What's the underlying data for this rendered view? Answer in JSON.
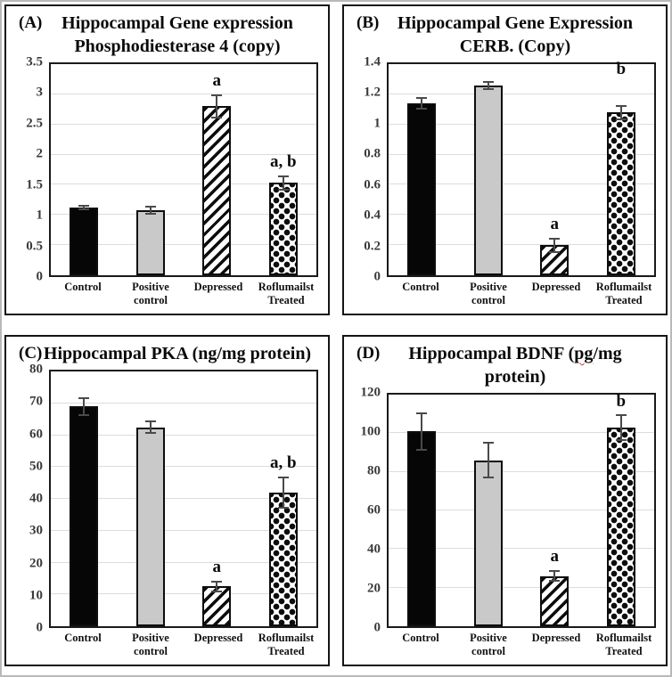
{
  "styles": {
    "bar_gray": "#c9c9c9",
    "grid_color": "#dcdcdc",
    "error_bar_color": "#4a4a4a",
    "misspell_underline_color": "#e03131",
    "bar_border_color": "#0d0d0d"
  },
  "chart_data": [
    {
      "panel_letter": "(A)",
      "title_lines": [
        "Hippocampal Gene expression",
        "Phosphodiesterase 4  (copy)"
      ],
      "type": "bar",
      "categories": [
        "Control",
        "Positive control",
        "Depressed",
        "Roflumailst Treated"
      ],
      "cat_lines": [
        [
          "Control"
        ],
        [
          "Positive",
          "control"
        ],
        [
          "Depressed"
        ],
        [
          "Roflumailst",
          "Treated"
        ]
      ],
      "values": [
        1.12,
        1.08,
        2.8,
        1.53
      ],
      "errors": [
        0.04,
        0.07,
        0.2,
        0.12
      ],
      "annotations": [
        "",
        "",
        "a",
        "a, b"
      ],
      "ann_y": [
        null,
        null,
        null,
        null
      ],
      "bar_styles": [
        "black",
        "gray",
        "hatch",
        "diamond"
      ],
      "ylim": [
        0,
        3.5
      ],
      "yticks": [
        "0",
        "0.5",
        "1",
        "1.5",
        "2",
        "2.5",
        "3",
        "3.5"
      ],
      "xlabel": "",
      "ylabel": "",
      "grid": true,
      "legend": null
    },
    {
      "panel_letter": "(B)",
      "title_lines": [
        "Hippocampal Gene Expression",
        "CERB. (Copy)"
      ],
      "type": "bar",
      "categories": [
        "Control",
        "Positive control",
        "Depressed",
        "Roflumailst Treated"
      ],
      "cat_lines": [
        [
          "Control"
        ],
        [
          "Positive",
          "control"
        ],
        [
          "Depressed"
        ],
        [
          "Roflumailst",
          "Treated"
        ]
      ],
      "values": [
        1.14,
        1.26,
        0.2,
        1.08
      ],
      "errors": [
        0.04,
        0.03,
        0.05,
        0.05
      ],
      "annotations": [
        "",
        "",
        "a",
        "b"
      ],
      "ann_y": [
        null,
        null,
        null,
        1.31
      ],
      "bar_styles": [
        "black",
        "gray",
        "hatch",
        "diamond"
      ],
      "ylim": [
        0,
        1.4
      ],
      "yticks": [
        "0",
        "0.2",
        "0.4",
        "0.6",
        "0.8",
        "1",
        "1.2",
        "1.4"
      ],
      "xlabel": "",
      "ylabel": "",
      "grid": true,
      "legend": null
    },
    {
      "panel_letter": "(C)",
      "title_lines": [
        "Hippocampal PKA (ng/mg protein)"
      ],
      "type": "bar",
      "categories": [
        "Control",
        "Positive control",
        "Depressed",
        "Roflumailst Treated"
      ],
      "cat_lines": [
        [
          "Control"
        ],
        [
          "Positive control"
        ],
        [
          "Depressed"
        ],
        [
          "Roflumailst",
          "Treated"
        ]
      ],
      "values": [
        69,
        62.5,
        12.5,
        42
      ],
      "errors": [
        3,
        2,
        1.8,
        5
      ],
      "annotations": [
        "",
        "",
        "a",
        "a, b"
      ],
      "ann_y": [
        null,
        null,
        null,
        null
      ],
      "bar_styles": [
        "black",
        "gray",
        "hatch",
        "diamond"
      ],
      "ylim": [
        0,
        80
      ],
      "yticks": [
        "0",
        "10",
        "20",
        "30",
        "40",
        "50",
        "60",
        "70",
        "80"
      ],
      "xlabel": "",
      "ylabel": "",
      "grid": true,
      "legend": null
    },
    {
      "panel_letter": "(D)",
      "title_lines": [
        "Hippocampal BDNF (pg/mg",
        "protein)"
      ],
      "misspelled": "pg",
      "type": "bar",
      "categories": [
        "Control",
        "Positive control",
        "Depressed",
        "Roflumailst Treated"
      ],
      "cat_lines": [
        [
          "Control"
        ],
        [
          "Positive control"
        ],
        [
          "Depressed"
        ],
        [
          "Roflumailst",
          "Treated"
        ]
      ],
      "values": [
        101,
        86,
        26,
        103
      ],
      "errors": [
        10,
        9.5,
        3,
        7
      ],
      "annotations": [
        "",
        "",
        "a",
        "b"
      ],
      "ann_y": [
        null,
        null,
        null,
        112
      ],
      "bar_styles": [
        "black",
        "gray",
        "hatch",
        "diamond"
      ],
      "ylim": [
        0,
        120
      ],
      "yticks": [
        "0",
        "20",
        "40",
        "60",
        "80",
        "100",
        "120"
      ],
      "xlabel": "",
      "ylabel": "",
      "grid": true,
      "legend": null
    }
  ]
}
